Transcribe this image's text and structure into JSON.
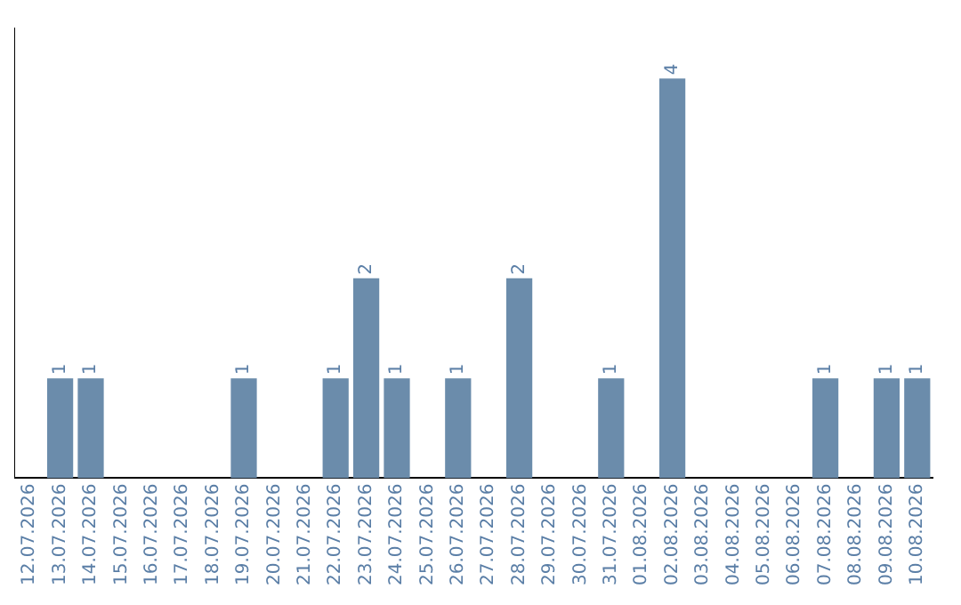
{
  "chart_data": {
    "type": "bar",
    "categories": [
      "12.07.2026",
      "13.07.2026",
      "14.07.2026",
      "15.07.2026",
      "16.07.2026",
      "17.07.2026",
      "18.07.2026",
      "19.07.2026",
      "20.07.2026",
      "21.07.2026",
      "22.07.2026",
      "23.07.2026",
      "24.07.2026",
      "25.07.2026",
      "26.07.2026",
      "27.07.2026",
      "28.07.2026",
      "29.07.2026",
      "30.07.2026",
      "31.07.2026",
      "01.08.2026",
      "02.08.2026",
      "03.08.2026",
      "04.08.2026",
      "05.08.2026",
      "06.08.2026",
      "07.08.2026",
      "08.08.2026",
      "09.08.2026",
      "10.08.2026"
    ],
    "values": [
      null,
      1,
      1,
      null,
      null,
      null,
      null,
      1,
      null,
      null,
      1,
      2,
      1,
      null,
      1,
      null,
      2,
      null,
      null,
      1,
      null,
      4,
      null,
      null,
      null,
      null,
      1,
      null,
      1,
      1
    ],
    "color": "#6b8cab",
    "data_labels": true,
    "grid": false,
    "legend": false
  }
}
